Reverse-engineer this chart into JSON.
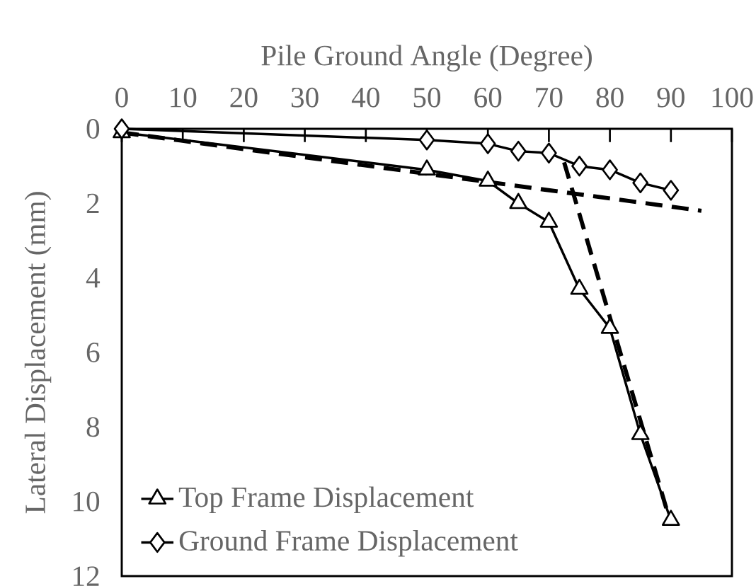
{
  "chart_data": {
    "type": "line",
    "xlabel": "Pile Ground Angle (Degree)",
    "ylabel": "Lateral Displacement (mm)",
    "xlim": [
      0,
      100
    ],
    "ylim": [
      12,
      0
    ],
    "xticks": [
      0,
      10,
      20,
      30,
      40,
      50,
      60,
      70,
      80,
      90,
      100
    ],
    "yticks": [
      0,
      2,
      4,
      6,
      8,
      10,
      12
    ],
    "legend": "bottom left",
    "grid": false,
    "series": [
      {
        "name": "Top Frame Displacement",
        "color": "#000000",
        "marker": "triangle",
        "line_style": "solid",
        "x": [
          0,
          50,
          60,
          65,
          70,
          75,
          80,
          85,
          90
        ],
        "values": [
          0.1,
          1.1,
          1.4,
          2.0,
          2.5,
          4.3,
          5.35,
          8.2,
          10.5
        ]
      },
      {
        "name": "Ground Frame Displacement",
        "color": "#000000",
        "marker": "diamond",
        "line_style": "solid",
        "x": [
          0,
          50,
          60,
          65,
          70,
          75,
          80,
          85,
          90
        ],
        "values": [
          0,
          0.3,
          0.4,
          0.6,
          0.65,
          1.0,
          1.1,
          1.45,
          1.65
        ]
      },
      {
        "color": "#000000",
        "marker": "none",
        "line_style": "dashed",
        "x": [
          0,
          95
        ],
        "values": [
          0.1,
          2.2
        ]
      },
      {
        "color": "#000000",
        "marker": "none",
        "line_style": "dashed",
        "x": [
          72.5,
          90
        ],
        "values": [
          0.9,
          10.6
        ]
      }
    ]
  }
}
